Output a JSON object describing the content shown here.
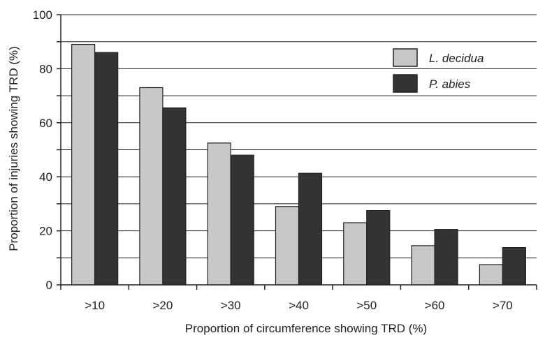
{
  "chart_data": {
    "type": "bar",
    "xlabel": "Proportion of circumference showing TRD (%)",
    "ylabel": "Proportion of injuries showing TRD (%)",
    "ylim": [
      0,
      100
    ],
    "yticks": [
      0,
      20,
      40,
      60,
      80,
      100
    ],
    "grid": true,
    "legend_position": "top-right",
    "categories": [
      ">10",
      ">20",
      ">30",
      ">40",
      ">50",
      ">60",
      ">70"
    ],
    "series": [
      {
        "name": "L. decidua",
        "color": "#c8c8c8",
        "values": [
          89,
          73,
          52.5,
          29,
          23,
          14.5,
          7.5
        ]
      },
      {
        "name": "P. abies",
        "color": "#333333",
        "values": [
          86,
          65.5,
          48,
          41.3,
          27.5,
          20.5,
          13.8
        ]
      }
    ]
  }
}
